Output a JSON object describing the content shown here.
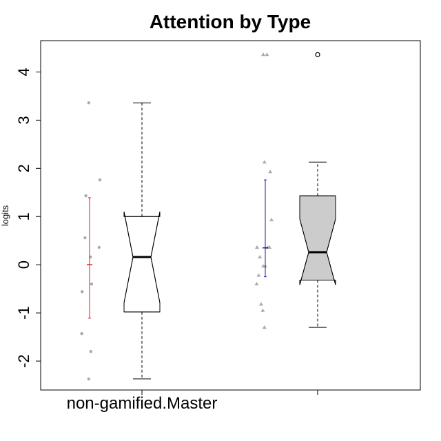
{
  "chart_data": {
    "type": "boxplot",
    "title": "Attention by Type",
    "ylabel": "logits",
    "xlabel": "",
    "ylim": [
      -2.6,
      4.65
    ],
    "yticks": [
      -2,
      -1,
      0,
      1,
      2,
      3,
      4
    ],
    "ytick_labels": [
      "-2",
      "-1",
      "0",
      "1",
      "2",
      "3",
      "4"
    ],
    "categories": [
      "non-gamified.Master",
      ""
    ],
    "series": [
      {
        "box": {
          "q1": -0.98,
          "median": 0.16,
          "q3": 1.0,
          "whisker_low": -2.37,
          "whisker_high": 3.36,
          "notch_low": -0.79,
          "notch_high": 1.1,
          "fill": "#ffffff",
          "outliers": []
        },
        "points": [
          {
            "x": -0.02,
            "y": 3.36
          },
          {
            "x": 0.25,
            "y": 1.76
          },
          {
            "x": -0.09,
            "y": 1.43
          },
          {
            "x": -0.11,
            "y": 0.56
          },
          {
            "x": 0.23,
            "y": 0.36
          },
          {
            "x": 0.02,
            "y": 0.16
          },
          {
            "x": 0.05,
            "y": -0.4
          },
          {
            "x": -0.18,
            "y": -0.56
          },
          {
            "x": -0.19,
            "y": -1.43
          },
          {
            "x": 0.03,
            "y": -1.8
          },
          {
            "x": -0.02,
            "y": -2.37
          }
        ],
        "mean": 0.0,
        "ci_low": -1.11,
        "ci_high": 1.39,
        "mean_color": "#e31a1c"
      },
      {
        "box": {
          "q1": -0.32,
          "median": 0.26,
          "q3": 1.43,
          "whisker_low": -1.3,
          "whisker_high": 2.13,
          "notch_low": -0.42,
          "notch_high": 0.95,
          "fill": "#cccccc",
          "outliers": [
            4.36
          ]
        },
        "points": [
          {
            "x": -0.05,
            "y": 4.36
          },
          {
            "x": 0.04,
            "y": 4.36
          },
          {
            "x": -0.02,
            "y": 2.13
          },
          {
            "x": 0.12,
            "y": 1.93
          },
          {
            "x": 0.15,
            "y": 0.93
          },
          {
            "x": -0.2,
            "y": 0.36
          },
          {
            "x": 0.06,
            "y": 0.36
          },
          {
            "x": 0.1,
            "y": 0.36
          },
          {
            "x": -0.13,
            "y": 0.16
          },
          {
            "x": -0.05,
            "y": -0.03
          },
          {
            "x": 0.0,
            "y": -0.03
          },
          {
            "x": -0.16,
            "y": -0.22
          },
          {
            "x": -0.21,
            "y": -0.4
          },
          {
            "x": -0.1,
            "y": -0.82
          },
          {
            "x": -0.06,
            "y": -0.95
          },
          {
            "x": -0.02,
            "y": -1.3
          }
        ],
        "mean": 0.35,
        "ci_low": -0.25,
        "ci_high": 1.76,
        "mean_color": "#1a1aa8"
      }
    ],
    "grid": false,
    "legend": "none"
  }
}
